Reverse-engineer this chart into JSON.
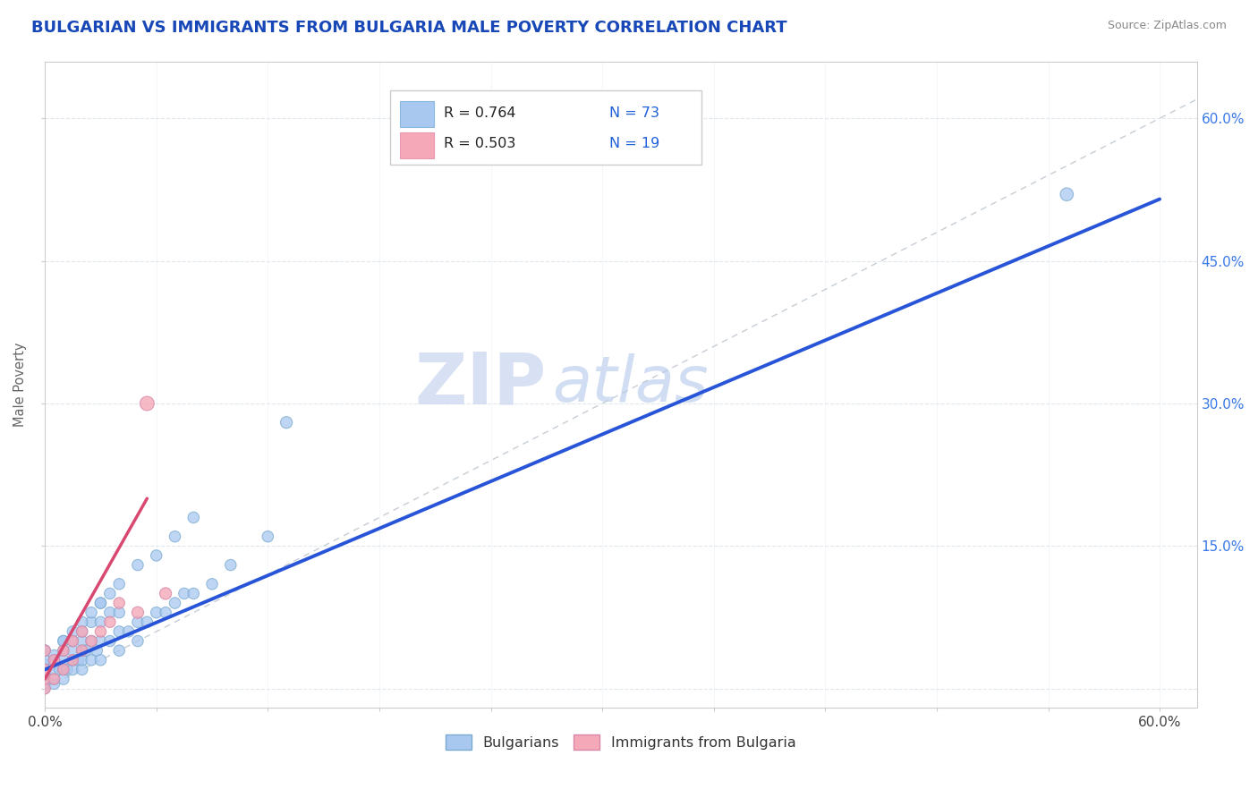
{
  "title": "BULGARIAN VS IMMIGRANTS FROM BULGARIA MALE POVERTY CORRELATION CHART",
  "source_text": "Source: ZipAtlas.com",
  "ylabel": "Male Poverty",
  "xlim": [
    0.0,
    0.62
  ],
  "ylim": [
    -0.02,
    0.66
  ],
  "xtick_pos": [
    0.0,
    0.06,
    0.12,
    0.18,
    0.24,
    0.3,
    0.36,
    0.42,
    0.48,
    0.54,
    0.6
  ],
  "xtick_labels": [
    "0.0%",
    "",
    "",
    "",
    "",
    "",
    "",
    "",
    "",
    "",
    "60.0%"
  ],
  "ytick_pos": [
    0.0,
    0.15,
    0.3,
    0.45,
    0.6
  ],
  "ytick_labels_right": [
    "",
    "15.0%",
    "30.0%",
    "45.0%",
    "60.0%"
  ],
  "blue_color": "#a8c8f0",
  "pink_color": "#f4a8b8",
  "blue_line_color": "#2855d8",
  "pink_line_color": "#d84870",
  "watermark_zip_color": "#ccd8f0",
  "watermark_atlas_color": "#b8ccec",
  "title_color": "#1848b8",
  "right_ytick_color": "#3878e8",
  "grid_color": "#e0e8f0",
  "background_color": "#ffffff",
  "blue_scatter_x": [
    0.0,
    0.0,
    0.0,
    0.0,
    0.0,
    0.0,
    0.0,
    0.0,
    0.005,
    0.005,
    0.005,
    0.005,
    0.008,
    0.01,
    0.01,
    0.01,
    0.01,
    0.01,
    0.012,
    0.015,
    0.015,
    0.015,
    0.015,
    0.018,
    0.02,
    0.02,
    0.02,
    0.02,
    0.02,
    0.022,
    0.025,
    0.025,
    0.025,
    0.028,
    0.03,
    0.03,
    0.03,
    0.03,
    0.035,
    0.035,
    0.04,
    0.04,
    0.04,
    0.045,
    0.05,
    0.05,
    0.055,
    0.06,
    0.065,
    0.07,
    0.075,
    0.08,
    0.09,
    0.1,
    0.12,
    0.13,
    0.55,
    0.0,
    0.0,
    0.0,
    0.005,
    0.01,
    0.015,
    0.02,
    0.025,
    0.03,
    0.035,
    0.04,
    0.05,
    0.06,
    0.07,
    0.08
  ],
  "blue_scatter_y": [
    0.0,
    0.005,
    0.01,
    0.015,
    0.02,
    0.025,
    0.03,
    0.04,
    0.005,
    0.01,
    0.02,
    0.03,
    0.02,
    0.01,
    0.02,
    0.03,
    0.04,
    0.05,
    0.02,
    0.02,
    0.03,
    0.04,
    0.05,
    0.03,
    0.02,
    0.03,
    0.04,
    0.05,
    0.06,
    0.04,
    0.03,
    0.05,
    0.07,
    0.04,
    0.03,
    0.05,
    0.07,
    0.09,
    0.05,
    0.08,
    0.04,
    0.06,
    0.08,
    0.06,
    0.05,
    0.07,
    0.07,
    0.08,
    0.08,
    0.09,
    0.1,
    0.1,
    0.11,
    0.13,
    0.16,
    0.28,
    0.52,
    0.005,
    0.02,
    0.04,
    0.035,
    0.05,
    0.06,
    0.07,
    0.08,
    0.09,
    0.1,
    0.11,
    0.13,
    0.14,
    0.16,
    0.18
  ],
  "blue_scatter_s": [
    70,
    70,
    70,
    70,
    80,
    80,
    80,
    80,
    80,
    80,
    80,
    80,
    80,
    80,
    80,
    80,
    80,
    80,
    80,
    80,
    80,
    80,
    80,
    80,
    80,
    80,
    80,
    80,
    80,
    80,
    80,
    80,
    80,
    80,
    80,
    80,
    80,
    80,
    80,
    80,
    80,
    80,
    80,
    80,
    80,
    80,
    80,
    80,
    80,
    80,
    80,
    80,
    80,
    80,
    80,
    90,
    110,
    70,
    80,
    80,
    80,
    80,
    80,
    80,
    80,
    80,
    80,
    80,
    80,
    80,
    80,
    80
  ],
  "pink_scatter_x": [
    0.0,
    0.0,
    0.0,
    0.0,
    0.005,
    0.005,
    0.01,
    0.01,
    0.015,
    0.015,
    0.02,
    0.02,
    0.025,
    0.03,
    0.035,
    0.04,
    0.05,
    0.055,
    0.065
  ],
  "pink_scatter_y": [
    0.0,
    0.01,
    0.02,
    0.04,
    0.01,
    0.03,
    0.02,
    0.04,
    0.03,
    0.05,
    0.04,
    0.06,
    0.05,
    0.06,
    0.07,
    0.09,
    0.08,
    0.3,
    0.1
  ],
  "pink_scatter_s": [
    80,
    80,
    80,
    80,
    80,
    80,
    80,
    80,
    80,
    80,
    80,
    80,
    80,
    80,
    80,
    80,
    90,
    130,
    90
  ],
  "blue_line_x": [
    0.0,
    0.6
  ],
  "blue_line_y": [
    0.02,
    0.515
  ],
  "pink_line_x": [
    0.0,
    0.055
  ],
  "pink_line_y": [
    0.01,
    0.2
  ],
  "diag_line_x": [
    0.0,
    0.62
  ],
  "diag_line_y": [
    0.0,
    0.62
  ]
}
